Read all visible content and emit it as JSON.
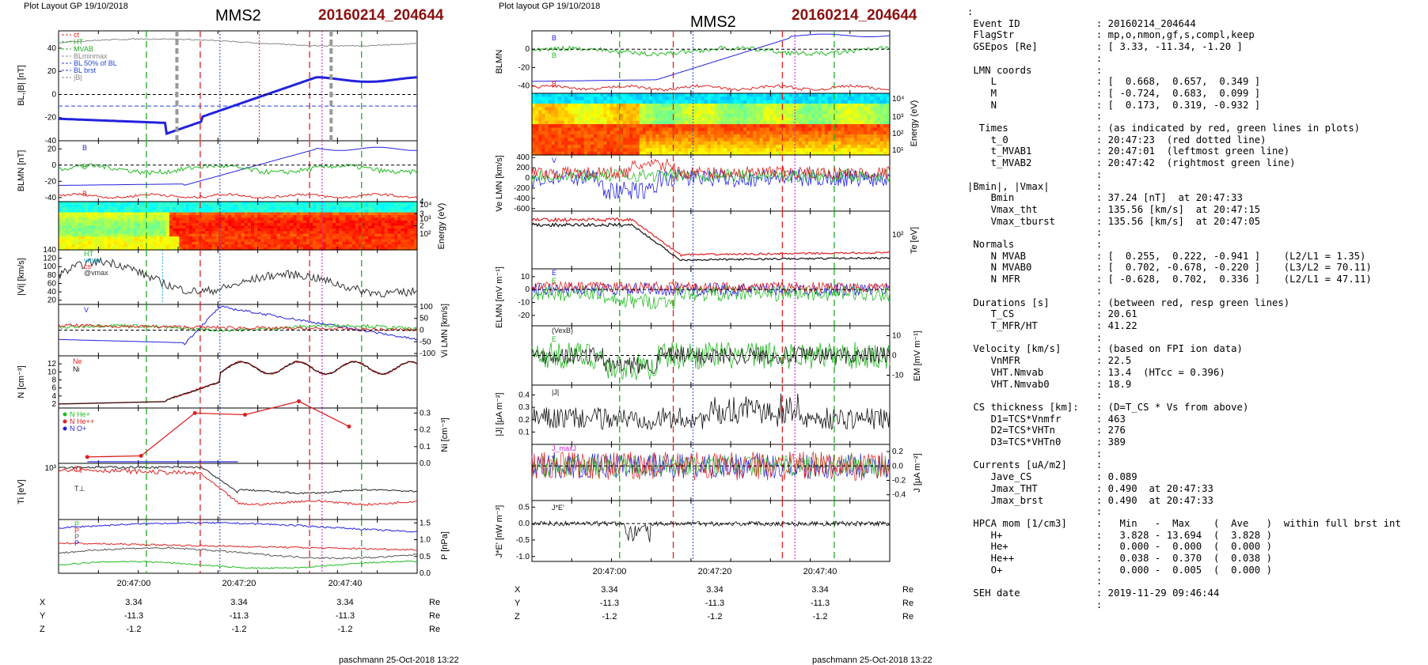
{
  "left": {
    "header": "Plot Layout GP 19/10/2018",
    "title": "MMS2",
    "event": "20160214_204644",
    "footer": "paschmann 25-Oct-2018 13:22",
    "time_ticks": [
      "20:47:00",
      "20:47:20",
      "20:47:40"
    ],
    "coords": [
      {
        "axis": "X",
        "values": [
          "3.34",
          "3.34",
          "3.34"
        ],
        "unit": "Re"
      },
      {
        "axis": "Y",
        "values": [
          "-11.3",
          "-11.3",
          "-11.3"
        ],
        "unit": "Re"
      },
      {
        "axis": "Z",
        "values": [
          "-1.2",
          "-1.2",
          "-1.2"
        ],
        "unit": "Re"
      }
    ]
  },
  "middle": {
    "header": "Plot layout GP 19/10/2018",
    "title": "MMS2",
    "event": "20160214_204644",
    "footer": "paschmann 25-Oct-2018 13:22",
    "time_ticks": [
      "20:47:00",
      "20:47:20",
      "20:47:40"
    ],
    "coords": [
      {
        "axis": "X",
        "values": [
          "3.34",
          "3.34",
          "3.34"
        ],
        "unit": "Re"
      },
      {
        "axis": "Y",
        "values": [
          "-11.3",
          "-11.3",
          "-11.3"
        ],
        "unit": "Re"
      },
      {
        "axis": "Z",
        "values": [
          "-1.2",
          "-1.2",
          "-1.2"
        ],
        "unit": "Re"
      }
    ]
  },
  "colors": {
    "L": "#2222dd",
    "M": "#22bb22",
    "N": "#dd2222",
    "HT": "#22aa22",
    "ct": "#dd2222",
    "MVAB": "#22aa22",
    "Bminmax": "#888888",
    "B50": "#2244dd",
    "brst": "#888888",
    "black": "#000000",
    "magenta": "#cc22cc",
    "cyan": "#22aacc"
  },
  "chart_data": [
    {
      "type": "line",
      "panel": "left-1",
      "ylabel": "BL,|B| [nT]",
      "yticks": [
        "40",
        "20",
        "0",
        "-20",
        "-40"
      ],
      "ylim": [
        -40,
        55
      ],
      "legend": [
        "ct",
        "HT",
        "MVAB",
        "BLminmax",
        "BL 50% of BL",
        "BL brst",
        "|B|"
      ],
      "series": [
        {
          "name": "|B|",
          "shape": "flatHigh"
        },
        {
          "name": "BL",
          "shape": "rise"
        }
      ]
    },
    {
      "type": "line",
      "panel": "left-2",
      "ylabel": "BLMN [nT]",
      "yticks": [
        "20",
        "0",
        "-20",
        "-40"
      ],
      "ylim": [
        -45,
        30
      ],
      "legend": [
        "BL",
        "BM",
        "BN"
      ]
    },
    {
      "type": "heatmap",
      "panel": "left-3",
      "ylabel": "Energy (eV)",
      "yticks": [
        "10⁴",
        "10³",
        "10²"
      ]
    },
    {
      "type": "line",
      "panel": "left-4",
      "ylabel": "|Vi| [km/s]",
      "yticks": [
        "140",
        "120",
        "100",
        "80",
        "60",
        "40",
        "20"
      ],
      "ylim": [
        10,
        140
      ],
      "legend": [
        "HT",
        "vmax",
        "cs",
        "@vmax"
      ]
    },
    {
      "type": "line",
      "panel": "left-5",
      "ylabel": "Vi LMN [km/s]",
      "yticks": [
        "100",
        "50",
        "0",
        "-50",
        "-100"
      ],
      "ylim": [
        -110,
        110
      ],
      "legend": [
        "VL"
      ]
    },
    {
      "type": "line",
      "panel": "left-6",
      "ylabel": "N [cm⁻³]",
      "yticks": [
        "12",
        "10",
        "8",
        "6",
        "4",
        "2"
      ],
      "ylim": [
        1,
        14
      ],
      "legend": [
        "Ne",
        "Ni"
      ]
    },
    {
      "type": "line",
      "panel": "left-7",
      "ylabel": "Ni [cm⁻³]",
      "yticks": [
        "0.3",
        "0.2",
        "0.1",
        "0.0"
      ],
      "ylim": [
        0,
        0.33
      ],
      "legend": [
        "N_He+",
        "N_He++",
        "N_O+"
      ],
      "series": [
        {
          "name": "N_He++",
          "x": [
            0.08,
            0.23,
            0.38,
            0.52,
            0.67,
            0.81
          ],
          "values": [
            0.038,
            0.045,
            0.3,
            0.29,
            0.37,
            0.22
          ]
        }
      ]
    },
    {
      "type": "line",
      "panel": "left-8",
      "ylabel": "Ti [eV]",
      "yticks": [
        "10³"
      ],
      "legend": [
        "T∥",
        "T⊥"
      ]
    },
    {
      "type": "line",
      "panel": "left-9",
      "ylabel": "P [nPa]",
      "yticks": [
        "1.5",
        "1.0",
        "0.5",
        "0.0"
      ],
      "ylim": [
        0,
        1.6
      ],
      "legend": [
        "Pt",
        "PB",
        "Pi",
        "Ptot"
      ]
    },
    {
      "type": "line",
      "panel": "mid-1",
      "ylabel": "BLMN",
      "yticks": [
        "0",
        "-20",
        "-40"
      ],
      "ylim": [
        -48,
        20
      ],
      "legend": [
        "BL",
        "BM",
        "BN"
      ]
    },
    {
      "type": "heatmap",
      "panel": "mid-2",
      "ylabel": "Energy (eV)",
      "yticks": [
        "10⁴",
        "10³",
        "10²",
        "10¹"
      ]
    },
    {
      "type": "line",
      "panel": "mid-3",
      "ylabel": "Ve LMN [km/s]",
      "yticks": [
        "400",
        "200",
        "0",
        "-200",
        "-400",
        "-600"
      ],
      "ylim": [
        -650,
        450
      ],
      "legend": [
        "VL",
        "VN"
      ]
    },
    {
      "type": "line",
      "panel": "mid-4",
      "ylabel": "Te [eV]",
      "yticks": [
        "10²"
      ],
      "legend": [
        "T∥"
      ]
    },
    {
      "type": "line",
      "panel": "mid-5",
      "ylabel": "ELMN [mV m⁻¹]",
      "yticks": [
        "10",
        "0",
        "-10",
        "-20"
      ],
      "ylim": [
        -28,
        16
      ],
      "legend": [
        "EL",
        "EM"
      ]
    },
    {
      "type": "line",
      "panel": "mid-6",
      "ylabel": "EM [mV m⁻¹]",
      "yticks": [
        "10",
        "0",
        "-10"
      ],
      "ylim": [
        -15,
        15
      ],
      "legend": [
        "(VexB)M",
        "EM"
      ]
    },
    {
      "type": "line",
      "panel": "mid-7",
      "ylabel": "|J| [μA m⁻²]",
      "yticks": [
        "0.4",
        "0.3",
        "0.2",
        "0.1"
      ],
      "ylim": [
        0,
        0.48
      ],
      "legend": [
        "|J|"
      ]
    },
    {
      "type": "line",
      "panel": "mid-8",
      "ylabel": "J [μA m⁻²]",
      "yticks": [
        "0.2",
        "0.0",
        "-0.2",
        "-0.4"
      ],
      "ylim": [
        -0.48,
        0.3
      ],
      "legend": [
        "J_maxJ",
        "JL"
      ]
    },
    {
      "type": "line",
      "panel": "mid-9",
      "ylabel": "J*E' [nW m⁻³]",
      "yticks": [
        "0.5",
        "0.0",
        "-0.5",
        "-1.0"
      ],
      "ylim": [
        -1.15,
        0.7
      ],
      "legend": [
        "J*E'"
      ]
    }
  ],
  "info_lines": [
    ":",
    " Event ID             : 20160214_204644",
    " FlagStr              : mp,o,nmon,gf,s,compl,keep",
    " GSEpos [Re]          : [ 3.33, -11.34, -1.20 ]",
    "                      :",
    " LMN coords           :",
    "    L                 : [  0.668,  0.657,  0.349 ]",
    "    M                 : [ -0.724,  0.683,  0.099 ]",
    "    N                 : [  0.173,  0.319, -0.932 ]",
    "                      :",
    "  Times               : (as indicated by red, green lines in plots)",
    "    t_0               : 20:47:23  (red dotted line)",
    "    t_MVAB1           : 20:47:01  (leftmost green line)",
    "    t_MVAB2           : 20:47:42  (rightmost green line)",
    "                      :",
    "|Bmin|, |Vmax|        :",
    "    Bmin              : 37.24 [nT]  at 20:47:33",
    "    Vmax_tht          : 135.56 [km/s]  at 20:47:15",
    "    Vmax_tburst       : 135.56 [km/s]  at 20:47:05",
    "                      :",
    " Normals              :",
    "    N MVAB            : [  0.255,  0.222, -0.941 ]    (L2/L1 = 1.35)",
    "    N MVAB0           : [  0.702, -0.678, -0.220 ]    (L3/L2 = 70.11)",
    "    N MFR             : [ -0.628,  0.702,  0.336 ]    (L2/L1 = 47.11)",
    "                      :",
    " Durations [s]        : (between red, resp green lines)",
    "    T_CS              : 20.61",
    "    T_MFR/HT          : 41.22",
    "                      :",
    " Velocity [km/s]      : (based on FPI ion data)",
    "    VnMFR             : 22.5",
    "    VHT.Nmvab         : 13.4  (HTcc = 0.396)",
    "    VHT.Nmvab0        : 18.9",
    "                      :",
    " CS thickness [km]:   : (D=T_CS * Vs from above)",
    "    D1=TCS*Vnmfr      : 463",
    "    D2=TCS*VHTn       : 276",
    "    D3=TCS*VHTn0      : 389",
    "                      :",
    " Currents [uA/m2]     :",
    "    Jave_CS           : 0.089",
    "    Jmax_THT          : 0.490  at 20:47:33",
    "    Jmax_brst         : 0.490  at 20:47:33",
    "                      :",
    " HPCA mom [1/cm3]     :   Min   -  Max    (  Ave   )  within full brst int",
    "    H+                :   3.828 - 13.694  (  3.828 )",
    "    He+               :   0.000 -  0.000  (  0.000 )",
    "    He++              :   0.038 -  0.370  (  0.038 )",
    "    O+                :   0.000 -  0.005  (  0.000 )",
    "                      :",
    " SEH date             : 2019-11-29 09:46:44",
    "                      :"
  ]
}
